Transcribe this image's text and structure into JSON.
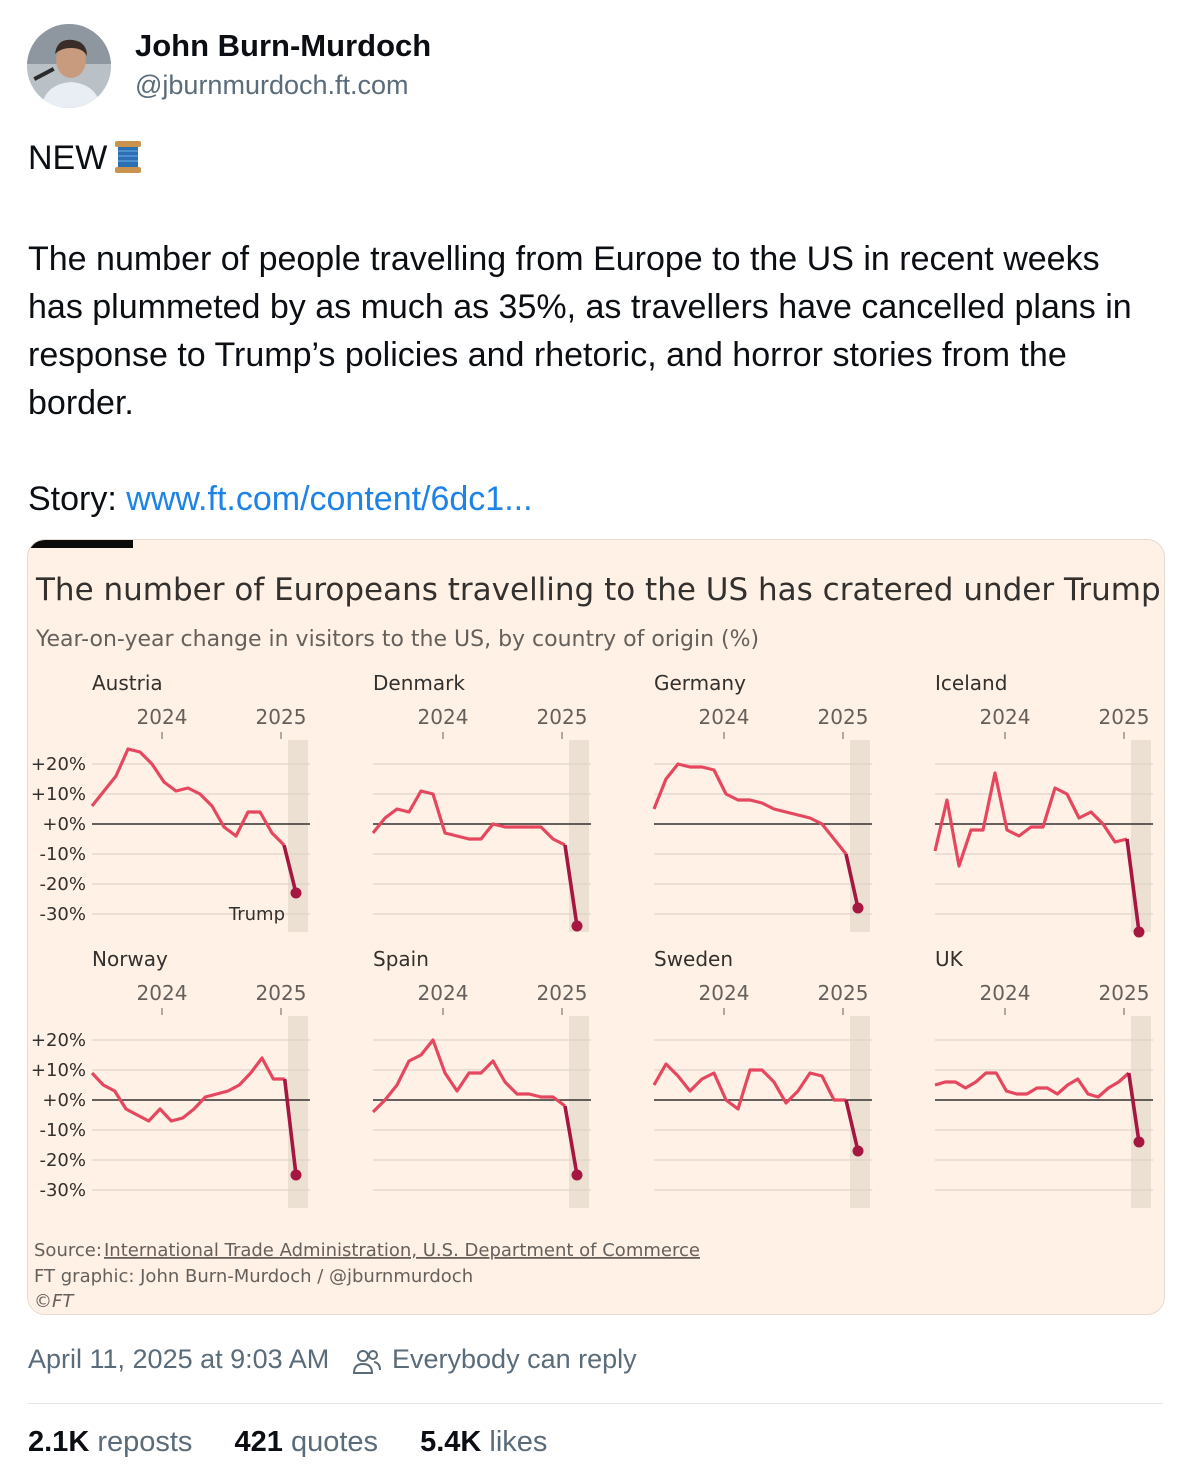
{
  "post": {
    "author_name": "John Burn-Murdoch",
    "author_handle": "@jburnmurdoch.ft.com",
    "text_line1": "NEW",
    "emoji": "spool-of-thread",
    "body": "The number of people travelling from Europe to the US in recent weeks has plummeted by as much as 35%, as travellers have cancelled plans in response to Trump’s policies and rhetoric, and horror stories from the border.",
    "story_label": "Story:",
    "story_link": "www.ft.com/content/6dc1...",
    "timestamp": "April 11, 2025 at 9:03 AM",
    "reply_setting": "Everybody can reply",
    "reposts_count": "2.1K",
    "reposts_label": "reposts",
    "quotes_count": "421",
    "quotes_label": "quotes",
    "likes_count": "5.4K",
    "likes_label": "likes"
  },
  "colors": {
    "line": "#e5475e",
    "line_dark": "#a51741",
    "card_bg": "#fff1e5",
    "shade": "#ece0d3",
    "link": "#1d83e6",
    "muted": "#5a6b7a"
  },
  "chart_data": {
    "type": "line",
    "title": "The number of Europeans travelling to the US has cratered under Trump",
    "subtitle": "Year-on-year change in visitors to the US, by country of origin (%)",
    "x_ticks": [
      "2024",
      "2025"
    ],
    "y_ticks": [
      "+20%",
      "+10%",
      "+0%",
      "-10%",
      "-20%",
      "-30%"
    ],
    "ylim": [
      -30,
      25
    ],
    "x_range": [
      "2023-06",
      "2025-03"
    ],
    "annotation": "Trump",
    "source_prefix": "Source:",
    "source_link": "International Trade Administration, U.S. Department of Commerce",
    "credit": "FT graphic: John Burn-Murdoch / @jburnmurdoch",
    "copyright": "©FT",
    "series": [
      {
        "name": "Austria",
        "values": [
          6,
          11,
          16,
          25,
          24,
          20,
          14,
          11,
          12,
          10,
          6,
          -1,
          -4,
          4,
          4,
          -3,
          -7,
          -23
        ]
      },
      {
        "name": "Denmark",
        "values": [
          -3,
          2,
          5,
          4,
          11,
          10,
          -3,
          -4,
          -5,
          -5,
          0,
          -1,
          -1,
          -1,
          -1,
          -5,
          -7,
          -34
        ]
      },
      {
        "name": "Germany",
        "values": [
          5,
          15,
          20,
          19,
          19,
          18,
          10,
          8,
          8,
          7,
          5,
          4,
          3,
          2,
          0,
          -5,
          -10,
          -28
        ]
      },
      {
        "name": "Iceland",
        "values": [
          -9,
          8,
          -14,
          -2,
          -2,
          17,
          -2,
          -4,
          -1,
          -1,
          12,
          10,
          2,
          4,
          0,
          -6,
          -5,
          -36
        ]
      },
      {
        "name": "Norway",
        "values": [
          9,
          5,
          3,
          -3,
          -5,
          -7,
          -3,
          -7,
          -6,
          -3,
          1,
          2,
          3,
          5,
          9,
          14,
          7,
          7,
          -25
        ]
      },
      {
        "name": "Spain",
        "values": [
          -4,
          0,
          5,
          13,
          15,
          20,
          9,
          3,
          9,
          9,
          13,
          6,
          2,
          2,
          1,
          1,
          -2,
          -25
        ]
      },
      {
        "name": "Sweden",
        "values": [
          5,
          12,
          8,
          3,
          7,
          9,
          0,
          -3,
          10,
          10,
          6,
          -1,
          3,
          9,
          8,
          0,
          0,
          -17
        ]
      },
      {
        "name": "UK",
        "values": [
          5,
          6,
          6,
          4,
          6,
          9,
          9,
          3,
          2,
          2,
          4,
          4,
          2,
          5,
          7,
          2,
          1,
          4,
          6,
          9,
          -14
        ]
      }
    ]
  }
}
